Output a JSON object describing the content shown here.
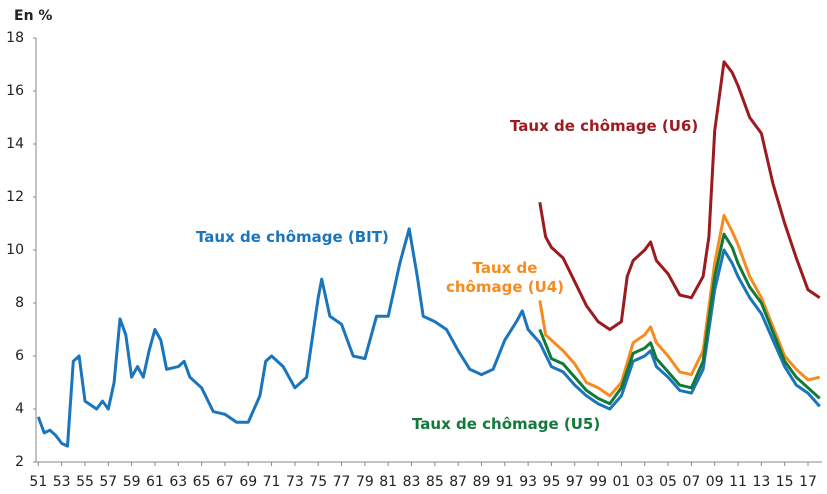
{
  "chart_data": {
    "type": "line",
    "y_label": "En %",
    "xlim": [
      1950.8,
      2018.2
    ],
    "ylim": [
      2,
      18
    ],
    "yticks": [
      2,
      4,
      6,
      8,
      10,
      12,
      14,
      16,
      18
    ],
    "xticks": [
      {
        "value": 1951,
        "label": "51"
      },
      {
        "value": 1953,
        "label": "53"
      },
      {
        "value": 1955,
        "label": "55"
      },
      {
        "value": 1957,
        "label": "57"
      },
      {
        "value": 1959,
        "label": "59"
      },
      {
        "value": 1961,
        "label": "61"
      },
      {
        "value": 1963,
        "label": "63"
      },
      {
        "value": 1965,
        "label": "65"
      },
      {
        "value": 1967,
        "label": "67"
      },
      {
        "value": 1969,
        "label": "69"
      },
      {
        "value": 1971,
        "label": "71"
      },
      {
        "value": 1973,
        "label": "73"
      },
      {
        "value": 1975,
        "label": "75"
      },
      {
        "value": 1977,
        "label": "77"
      },
      {
        "value": 1979,
        "label": "79"
      },
      {
        "value": 1981,
        "label": "81"
      },
      {
        "value": 1983,
        "label": "83"
      },
      {
        "value": 1985,
        "label": "85"
      },
      {
        "value": 1987,
        "label": "87"
      },
      {
        "value": 1989,
        "label": "89"
      },
      {
        "value": 1991,
        "label": "91"
      },
      {
        "value": 1993,
        "label": "93"
      },
      {
        "value": 1995,
        "label": "95"
      },
      {
        "value": 1997,
        "label": "97"
      },
      {
        "value": 1999,
        "label": "99"
      },
      {
        "value": 2001,
        "label": "01"
      },
      {
        "value": 2003,
        "label": "03"
      },
      {
        "value": 2005,
        "label": "05"
      },
      {
        "value": 2007,
        "label": "07"
      },
      {
        "value": 2009,
        "label": "09"
      },
      {
        "value": 2011,
        "label": "11"
      },
      {
        "value": 2013,
        "label": "13"
      },
      {
        "value": 2015,
        "label": "15"
      },
      {
        "value": 2017,
        "label": "17"
      }
    ],
    "series": [
      {
        "name": "Taux de chômage (BIT)",
        "color": "#1a75bc",
        "x": [
          1951,
          1951.5,
          1952,
          1952.5,
          1953,
          1953.5,
          1954,
          1954.5,
          1955,
          1956,
          1956.5,
          1957,
          1957.5,
          1958,
          1958.5,
          1959,
          1959.5,
          1960,
          1960.5,
          1961,
          1961.5,
          1962,
          1963,
          1963.5,
          1964,
          1965,
          1966,
          1967,
          1968,
          1969,
          1970,
          1970.5,
          1971,
          1972,
          1973,
          1974,
          1975,
          1975.3,
          1976,
          1977,
          1978,
          1979,
          1980,
          1981,
          1982,
          1982.8,
          1983.5,
          1984,
          1985,
          1986,
          1987,
          1988,
          1989,
          1990,
          1991,
          1992,
          1992.5,
          1993,
          1994,
          1995,
          1996,
          1997,
          1998,
          1999,
          2000,
          2001,
          2002,
          2003,
          2003.5,
          2004,
          2005,
          2006,
          2007,
          2008,
          2009,
          2009.8,
          2010.5,
          2011,
          2012,
          2013,
          2014,
          2015,
          2016,
          2017,
          2018
        ],
        "values": [
          3.7,
          3.1,
          3.2,
          3.0,
          2.7,
          2.6,
          5.8,
          6.0,
          4.3,
          4.0,
          4.3,
          4.0,
          5.0,
          7.4,
          6.8,
          5.2,
          5.6,
          5.2,
          6.2,
          7.0,
          6.6,
          5.5,
          5.6,
          5.8,
          5.2,
          4.8,
          3.9,
          3.8,
          3.5,
          3.5,
          4.5,
          5.8,
          6.0,
          5.6,
          4.8,
          5.2,
          8.2,
          8.9,
          7.5,
          7.2,
          6.0,
          5.9,
          7.5,
          7.5,
          9.5,
          10.8,
          9.0,
          7.5,
          7.3,
          7.0,
          6.2,
          5.5,
          5.3,
          5.5,
          6.6,
          7.3,
          7.7,
          7.0,
          6.5,
          5.6,
          5.4,
          4.9,
          4.5,
          4.2,
          4.0,
          4.5,
          5.8,
          6.0,
          6.2,
          5.6,
          5.2,
          4.7,
          4.6,
          5.5,
          8.5,
          10.0,
          9.5,
          9.0,
          8.2,
          7.6,
          6.6,
          5.6,
          4.9,
          4.6,
          4.1
        ]
      },
      {
        "name": "Taux de chômage (U6)",
        "color": "#9b1b1f",
        "x": [
          1994,
          1994.5,
          1995,
          1996,
          1997,
          1998,
          1999,
          2000,
          2001,
          2001.5,
          2002,
          2003,
          2003.5,
          2004,
          2005,
          2006,
          2007,
          2008,
          2008.5,
          2009,
          2009.8,
          2010.5,
          2011,
          2012,
          2013,
          2014,
          2015,
          2016,
          2017,
          2018
        ],
        "values": [
          11.8,
          10.5,
          10.1,
          9.7,
          8.8,
          7.9,
          7.3,
          7.0,
          7.3,
          9.0,
          9.6,
          10.0,
          10.3,
          9.6,
          9.1,
          8.3,
          8.2,
          9.0,
          10.5,
          14.5,
          17.1,
          16.7,
          16.2,
          15.0,
          14.4,
          12.5,
          11.0,
          9.7,
          8.5,
          8.2
        ]
      },
      {
        "name": "Taux de chômage (U4)",
        "color": "#f68b1f",
        "x": [
          1994,
          1994.5,
          1995,
          1996,
          1997,
          1998,
          1999,
          2000,
          2001,
          2002,
          2003,
          2003.5,
          2004,
          2005,
          2006,
          2007,
          2008,
          2009,
          2009.8,
          2010.5,
          2011,
          2012,
          2013,
          2014,
          2015,
          2016,
          2017,
          2018
        ],
        "values": [
          8.1,
          6.8,
          6.6,
          6.2,
          5.7,
          5.0,
          4.8,
          4.5,
          5.0,
          6.5,
          6.8,
          7.1,
          6.5,
          6.0,
          5.4,
          5.3,
          6.2,
          9.5,
          11.3,
          10.7,
          10.2,
          9.0,
          8.2,
          7.1,
          6.0,
          5.5,
          5.1,
          5.2
        ]
      },
      {
        "name": "Taux de chômage (U5)",
        "color": "#117a3a",
        "x": [
          1994,
          1995,
          1996,
          1997,
          1998,
          1999,
          2000,
          2001,
          2002,
          2003,
          2003.5,
          2004,
          2005,
          2006,
          2007,
          2008,
          2009,
          2009.8,
          2010.5,
          2011,
          2012,
          2013,
          2014,
          2015,
          2016,
          2017,
          2018
        ],
        "values": [
          7.0,
          5.9,
          5.7,
          5.2,
          4.7,
          4.4,
          4.2,
          4.8,
          6.1,
          6.3,
          6.5,
          5.9,
          5.4,
          4.9,
          4.8,
          5.8,
          9.0,
          10.6,
          10.1,
          9.5,
          8.6,
          8.0,
          6.9,
          5.8,
          5.2,
          4.8,
          4.4
        ]
      }
    ]
  }
}
